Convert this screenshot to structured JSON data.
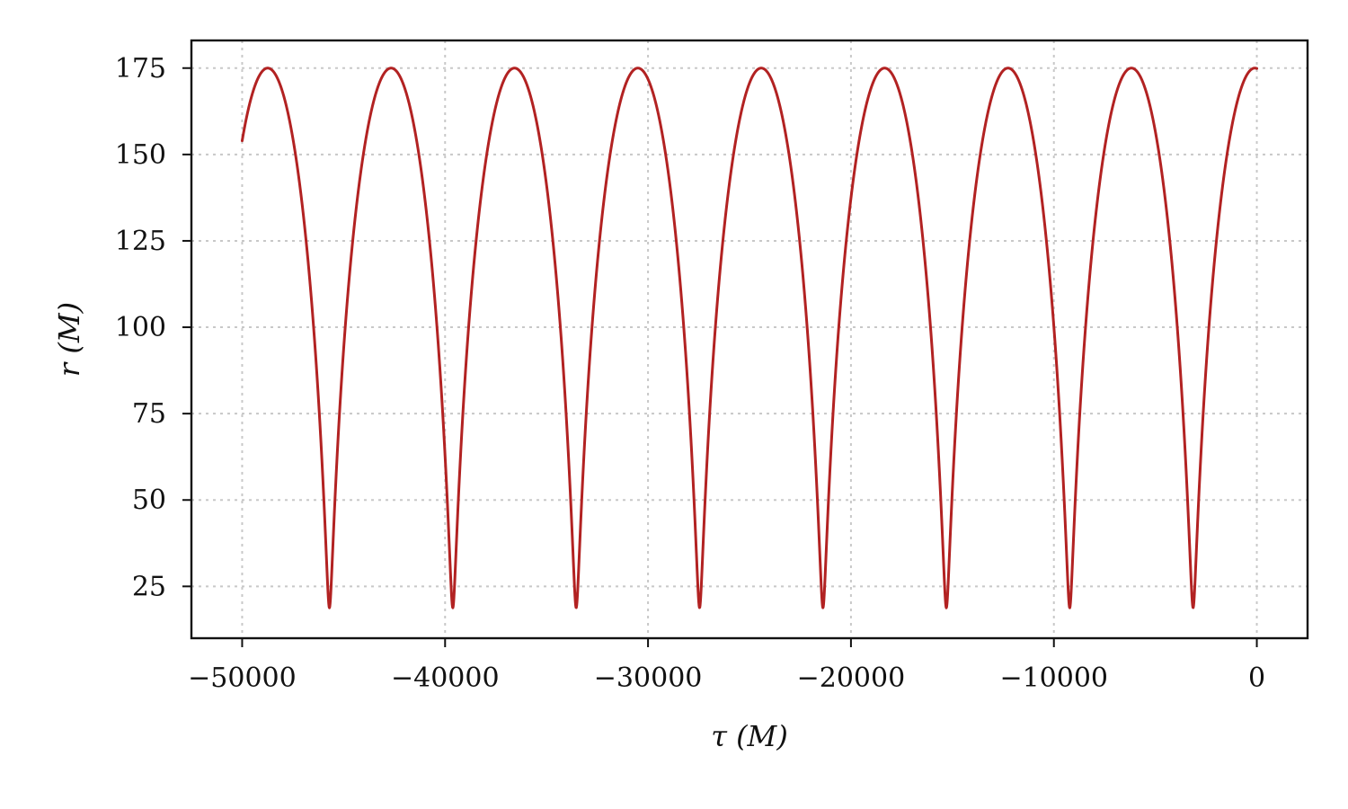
{
  "chart_data": {
    "type": "line",
    "title": "",
    "xlabel": "τ (M)",
    "ylabel": "r (M)",
    "xlim": [
      -52500,
      2500
    ],
    "ylim": [
      10,
      183
    ],
    "xticks": [
      -50000,
      -40000,
      -30000,
      -20000,
      -10000,
      0
    ],
    "xtick_labels": [
      "−50000",
      "−40000",
      "−30000",
      "−20000",
      "−10000",
      "0"
    ],
    "yticks": [
      25,
      50,
      75,
      100,
      125,
      150,
      175
    ],
    "ytick_labels": [
      "25",
      "50",
      "75",
      "100",
      "125",
      "150",
      "175"
    ],
    "grid": true,
    "legend": "none",
    "series": [
      {
        "color": "#b22222",
        "orbit": {
          "r_max": 175,
          "r_min": 18.8,
          "period": 6080,
          "x_start": -50000,
          "x_end": 0,
          "apoapsis_at": [
            -48740,
            -42660,
            -36580,
            -30500,
            -24420,
            -18340,
            -12260,
            -6180,
            -100
          ],
          "periapsis_at": [
            -45700,
            -39620,
            -33540,
            -27460,
            -21380,
            -15300,
            -9220,
            -3140
          ],
          "r_at_start": 152
        }
      }
    ]
  }
}
